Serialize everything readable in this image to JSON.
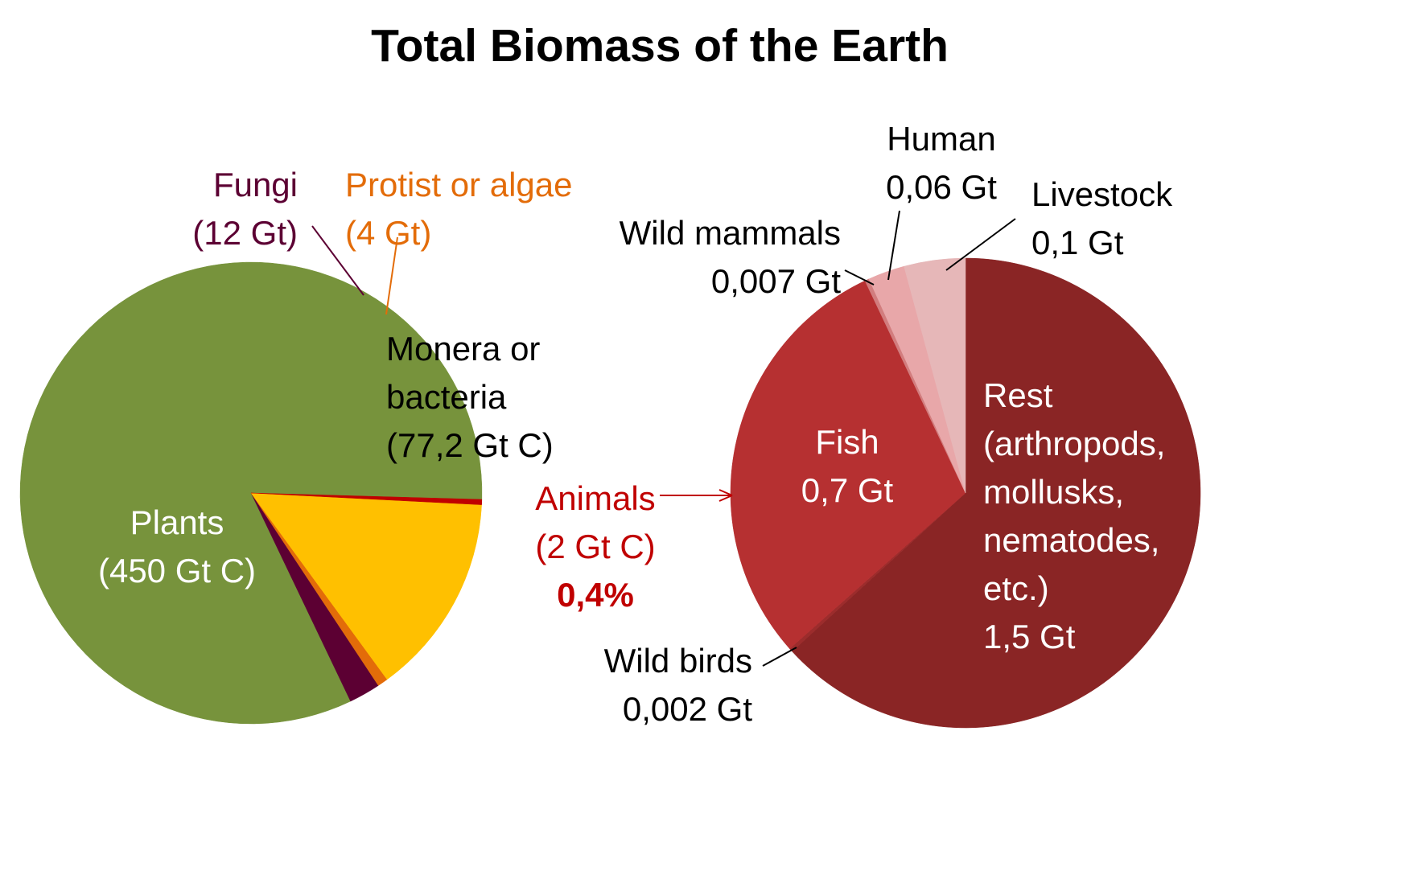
{
  "title": "Total Biomass of the Earth",
  "colors": {
    "plants": "#77933c",
    "fungi": "#5c0033",
    "protist": "#e36c09",
    "monera": "#ffc000",
    "animals": "#c00000",
    "fish": "#b63031",
    "rest": "#8a2525",
    "human": "#e8a7a9",
    "livestock": "#e6b7b8",
    "wild_mammals": "#d27d7e",
    "wild_birds": "#9c2c2c"
  },
  "chart_data": [
    {
      "type": "pie",
      "unit": "Gt C",
      "slices": [
        {
          "key": "plants",
          "value": 450,
          "lines": [
            "Plants",
            "(450 Gt C)"
          ]
        },
        {
          "key": "fungi",
          "value": 12,
          "lines": [
            "Fungi",
            "(12 Gt)"
          ]
        },
        {
          "key": "protist",
          "value": 4,
          "lines": [
            "Protist or algae",
            "(4 Gt)"
          ]
        },
        {
          "key": "monera",
          "value": 77.2,
          "lines": [
            "Monera or",
            "bacteria",
            "(77,2 Gt C)"
          ]
        },
        {
          "key": "animals",
          "value": 2,
          "lines": [
            "Animals",
            "(2 Gt C)"
          ],
          "share": "0,4%"
        }
      ]
    },
    {
      "type": "pie",
      "unit": "Gt",
      "slices": [
        {
          "key": "rest",
          "value": 1.5,
          "lines": [
            "Rest",
            "(arthropods,",
            "mollusks,",
            "nematodes,",
            "etc.)",
            "1,5 Gt"
          ]
        },
        {
          "key": "wild_birds",
          "value": 0.002,
          "lines": [
            "Wild birds",
            "0,002 Gt"
          ]
        },
        {
          "key": "fish",
          "value": 0.7,
          "lines": [
            "Fish",
            "0,7 Gt"
          ]
        },
        {
          "key": "wild_mammals",
          "value": 0.007,
          "lines": [
            "Wild mammals",
            "0,007 Gt"
          ]
        },
        {
          "key": "human",
          "value": 0.06,
          "lines": [
            "Human",
            "0,06 Gt"
          ]
        },
        {
          "key": "livestock",
          "value": 0.1,
          "lines": [
            "Livestock",
            "0,1 Gt"
          ]
        }
      ]
    }
  ]
}
